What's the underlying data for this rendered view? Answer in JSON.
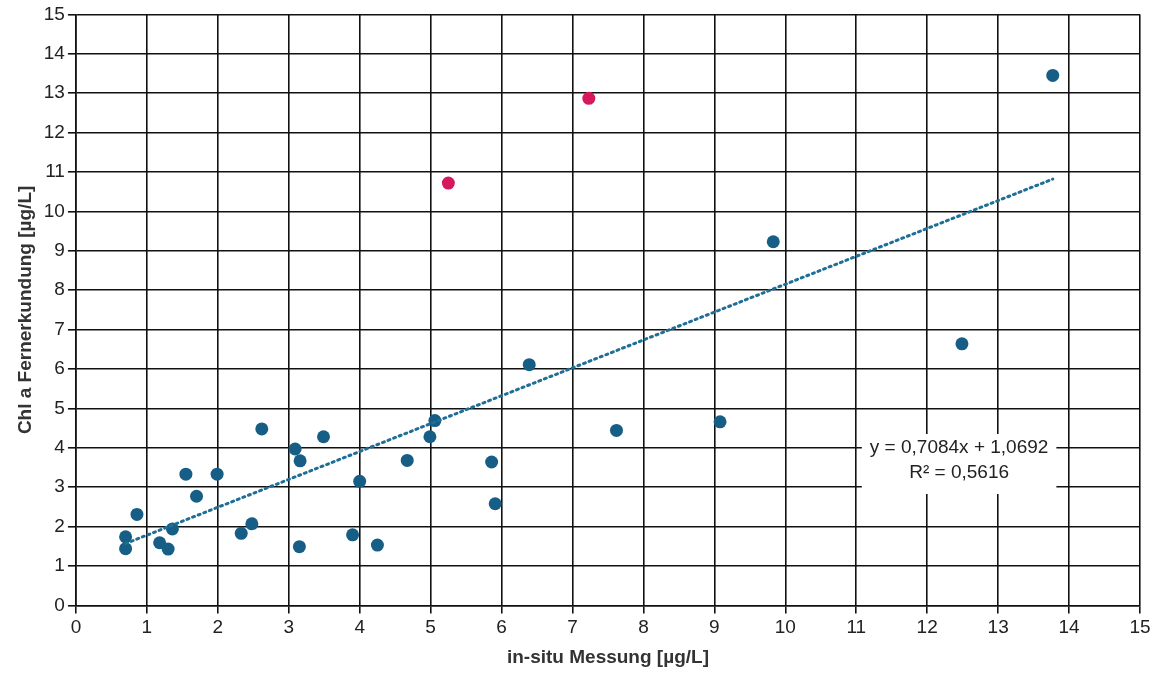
{
  "chart_data": {
    "type": "scatter",
    "xlabel": "in-situ Messung [µg/L]",
    "ylabel": "Chl a Fernerkundung [µg/L]",
    "xlim": [
      0,
      15
    ],
    "ylim": [
      0,
      15
    ],
    "xticks": [
      0,
      1,
      2,
      3,
      4,
      5,
      6,
      7,
      8,
      9,
      10,
      11,
      12,
      13,
      14,
      15
    ],
    "yticks": [
      0,
      1,
      2,
      3,
      4,
      5,
      6,
      7,
      8,
      9,
      10,
      11,
      12,
      13,
      14,
      15
    ],
    "grid": true,
    "legend": false,
    "marker": "circle",
    "annotations": [
      "y = 0,7084x + 1,0692",
      "R² = 0,5616"
    ],
    "series": [
      {
        "color": "#175e86",
        "x": [
          0.7,
          0.7,
          0.86,
          1.18,
          1.3,
          1.36,
          1.55,
          1.7,
          1.99,
          2.33,
          2.48,
          2.62,
          3.09,
          3.16,
          3.15,
          3.49,
          3.9,
          4.0,
          4.25,
          4.67,
          4.99,
          5.06,
          5.86,
          5.91,
          6.39,
          7.62,
          9.08,
          9.83,
          12.49,
          13.77
        ],
        "values": [
          1.74,
          1.44,
          2.31,
          1.59,
          1.43,
          1.94,
          3.33,
          2.77,
          3.33,
          1.83,
          2.07,
          4.48,
          3.97,
          3.67,
          1.49,
          4.28,
          1.79,
          3.15,
          1.53,
          3.68,
          4.28,
          4.69,
          3.64,
          2.58,
          6.11,
          4.44,
          4.66,
          9.23,
          6.64,
          13.45
        ]
      },
      {
        "color": "#d6195c",
        "x": [
          5.25,
          7.23
        ],
        "values": [
          10.72,
          12.87
        ]
      },
      {
        "type": "line",
        "color": "#1f6e96",
        "line_style": "dotted",
        "marker": "none",
        "x": [
          0.7,
          13.77
        ],
        "values": [
          1.57,
          10.82
        ]
      }
    ]
  }
}
